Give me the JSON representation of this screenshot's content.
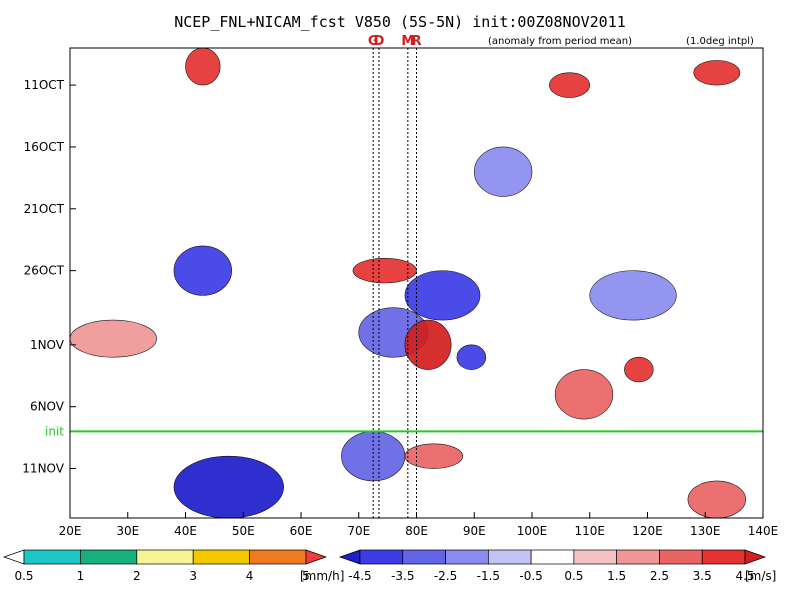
{
  "chart_data": {
    "type": "heatmap",
    "title": "NCEP_FNL+NICAM_fcst V850 (5S-5N) init:00Z08NOV2011",
    "subtitle_left": "(anomaly from period mean)",
    "subtitle_right": "(1.0deg intpl)",
    "x_axis": {
      "unit": "longitude",
      "range": [
        20,
        140
      ],
      "ticks": [
        {
          "value": 20,
          "label": "20E"
        },
        {
          "value": 30,
          "label": "30E"
        },
        {
          "value": 40,
          "label": "40E"
        },
        {
          "value": 50,
          "label": "50E"
        },
        {
          "value": 60,
          "label": "60E"
        },
        {
          "value": 70,
          "label": "70E"
        },
        {
          "value": 80,
          "label": "80E"
        },
        {
          "value": 90,
          "label": "90E"
        },
        {
          "value": 100,
          "label": "100E"
        },
        {
          "value": 110,
          "label": "110E"
        },
        {
          "value": 120,
          "label": "120E"
        },
        {
          "value": 130,
          "label": "130E"
        },
        {
          "value": 140,
          "label": "140E"
        }
      ]
    },
    "y_axis": {
      "unit": "date",
      "range": [
        "2011-10-08",
        "2011-11-15"
      ],
      "ticks": [
        {
          "value": "2011-10-11",
          "label": "11OCT"
        },
        {
          "value": "2011-10-16",
          "label": "16OCT"
        },
        {
          "value": "2011-10-21",
          "label": "21OCT"
        },
        {
          "value": "2011-10-26",
          "label": "26OCT"
        },
        {
          "value": "2011-11-01",
          "label": "1NOV"
        },
        {
          "value": "2011-11-06",
          "label": "6NOV"
        },
        {
          "value": "2011-11-11",
          "label": "11NOV"
        }
      ]
    },
    "markers": [
      {
        "label": "G",
        "longitude": 72.5
      },
      {
        "label": "D",
        "longitude": 73.5
      },
      {
        "label": "M",
        "longitude": 78.5
      },
      {
        "label": "R",
        "longitude": 80
      }
    ],
    "init_line": {
      "label": "init",
      "value": "2011-11-08",
      "color": "#22cc22"
    },
    "precip_legend": {
      "unit": "[mm/h]",
      "levels": [
        "0.5",
        "1",
        "2",
        "3",
        "4",
        "5"
      ],
      "colors": [
        "#ffffff",
        "#1fc6c6",
        "#15b07e",
        "#f5f596",
        "#f5c900",
        "#f07a1e",
        "#f03c3c"
      ]
    },
    "wind_legend": {
      "unit": "[m/s]",
      "levels": [
        "-4.5",
        "-3.5",
        "-2.5",
        "-1.5",
        "-0.5",
        "0.5",
        "1.5",
        "2.5",
        "3.5",
        "4.5"
      ],
      "colors": [
        "#1e1ecd",
        "#3c3ce6",
        "#6464e6",
        "#8c8cf0",
        "#c3c3f5",
        "#ffffff",
        "#f5c3c3",
        "#f09696",
        "#eb6464",
        "#e63232",
        "#d21e1e"
      ]
    },
    "anomaly_regions": [
      {
        "x_range": [
          38,
          48
        ],
        "y_range": [
          "2011-10-24",
          "2011-10-28"
        ],
        "sign": "negative",
        "intensity": 4
      },
      {
        "x_range": [
          38,
          57
        ],
        "y_range": [
          "2011-11-10",
          "2011-11-15"
        ],
        "sign": "negative",
        "intensity": 5
      },
      {
        "x_range": [
          70,
          82
        ],
        "y_range": [
          "2011-10-29",
          "2011-11-02"
        ],
        "sign": "negative",
        "intensity": 3
      },
      {
        "x_range": [
          78,
          91
        ],
        "y_range": [
          "2011-10-26",
          "2011-10-30"
        ],
        "sign": "negative",
        "intensity": 4
      },
      {
        "x_range": [
          87,
          92
        ],
        "y_range": [
          "2011-11-01",
          "2011-11-03"
        ],
        "sign": "negative",
        "intensity": 4
      },
      {
        "x_range": [
          67,
          78
        ],
        "y_range": [
          "2011-11-08",
          "2011-11-12"
        ],
        "sign": "negative",
        "intensity": 3
      },
      {
        "x_range": [
          40,
          46
        ],
        "y_range": [
          "2011-10-08",
          "2011-10-11"
        ],
        "sign": "positive",
        "intensity": 4
      },
      {
        "x_range": [
          69,
          80
        ],
        "y_range": [
          "2011-10-25",
          "2011-10-27"
        ],
        "sign": "positive",
        "intensity": 4
      },
      {
        "x_range": [
          78,
          86
        ],
        "y_range": [
          "2011-10-30",
          "2011-11-03"
        ],
        "sign": "positive",
        "intensity": 5
      },
      {
        "x_range": [
          103,
          110
        ],
        "y_range": [
          "2011-10-10",
          "2011-10-12"
        ],
        "sign": "positive",
        "intensity": 4
      },
      {
        "x_range": [
          128,
          136
        ],
        "y_range": [
          "2011-10-09",
          "2011-10-11"
        ],
        "sign": "positive",
        "intensity": 4
      },
      {
        "x_range": [
          104,
          114
        ],
        "y_range": [
          "2011-11-03",
          "2011-11-07"
        ],
        "sign": "positive",
        "intensity": 3
      },
      {
        "x_range": [
          116,
          121
        ],
        "y_range": [
          "2011-11-02",
          "2011-11-04"
        ],
        "sign": "positive",
        "intensity": 4
      },
      {
        "x_range": [
          78,
          88
        ],
        "y_range": [
          "2011-11-09",
          "2011-11-11"
        ],
        "sign": "positive",
        "intensity": 3
      },
      {
        "x_range": [
          127,
          137
        ],
        "y_range": [
          "2011-11-12",
          "2011-11-15"
        ],
        "sign": "positive",
        "intensity": 3
      },
      {
        "x_range": [
          20,
          35
        ],
        "y_range": [
          "2011-10-30",
          "2011-11-02"
        ],
        "sign": "positive",
        "intensity": 2
      },
      {
        "x_range": [
          90,
          100
        ],
        "y_range": [
          "2011-10-16",
          "2011-10-20"
        ],
        "sign": "negative",
        "intensity": 2
      },
      {
        "x_range": [
          110,
          125
        ],
        "y_range": [
          "2011-10-26",
          "2011-10-30"
        ],
        "sign": "negative",
        "intensity": 2
      }
    ]
  }
}
